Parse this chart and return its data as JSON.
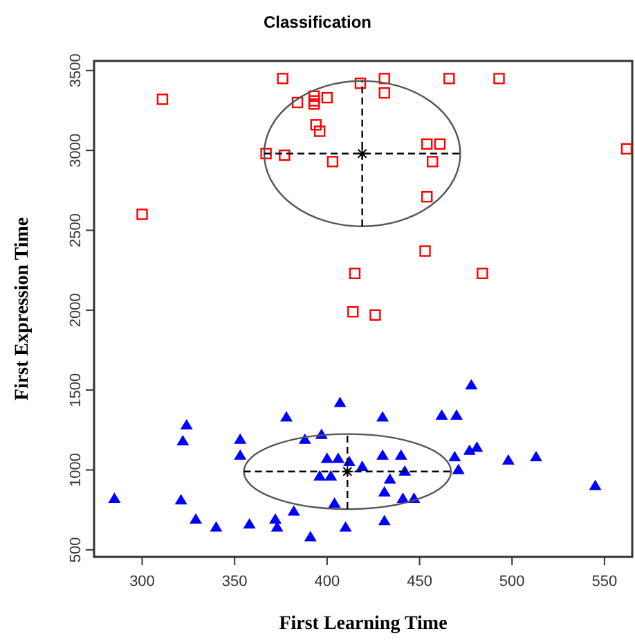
{
  "chart_data": {
    "type": "scatter",
    "title": "Classification",
    "xlabel": "First Learning Time",
    "ylabel": "First Expression Time",
    "xlim": [
      274,
      565
    ],
    "ylim": [
      456,
      3560
    ],
    "xticks": [
      300,
      350,
      400,
      450,
      500,
      550
    ],
    "yticks": [
      500,
      1000,
      1500,
      2000,
      2500,
      3000,
      3500
    ],
    "grid": false,
    "series": [
      {
        "marker": "square",
        "color": "#ff0000",
        "x": [
          376,
          311,
          384,
          393,
          393,
          393,
          400,
          418,
          431,
          431,
          394,
          396,
          367,
          377,
          403,
          300,
          415,
          414,
          426,
          466,
          493,
          454,
          461,
          457,
          454,
          453,
          484,
          562
        ],
        "values": [
          3450,
          3320,
          3300,
          3340,
          3310,
          3290,
          3330,
          3420,
          3450,
          3360,
          3160,
          3120,
          2980,
          2970,
          2930,
          2600,
          2230,
          1990,
          1970,
          3450,
          3450,
          3040,
          3040,
          2930,
          2710,
          2370,
          2230,
          3010
        ]
      },
      {
        "marker": "triangle",
        "color": "#0000ff",
        "x": [
          285,
          324,
          322,
          321,
          329,
          340,
          353,
          353,
          358,
          372,
          373,
          378,
          382,
          388,
          391,
          397,
          400,
          406,
          407,
          396,
          402,
          404,
          412,
          410,
          419,
          430,
          430,
          434,
          431,
          431,
          440,
          442,
          441,
          447,
          462,
          470,
          478,
          469,
          477,
          481,
          471,
          498,
          513,
          545
        ],
        "values": [
          820,
          1280,
          1180,
          810,
          690,
          640,
          1190,
          1090,
          660,
          690,
          640,
          1330,
          740,
          1190,
          580,
          1220,
          1070,
          1070,
          1420,
          960,
          960,
          790,
          1050,
          640,
          1020,
          1330,
          1090,
          940,
          860,
          680,
          1090,
          990,
          820,
          820,
          1340,
          1340,
          1530,
          1080,
          1120,
          1140,
          1000,
          1060,
          1080,
          900
        ]
      },
      {
        "marker": "cross",
        "line_style": "dashed",
        "color": "#000000",
        "x": [
          419,
          411
        ],
        "values": [
          2980,
          990
        ],
        "errors": [
          455,
          235
        ],
        "xerrors": [
          53,
          56
        ]
      }
    ]
  }
}
